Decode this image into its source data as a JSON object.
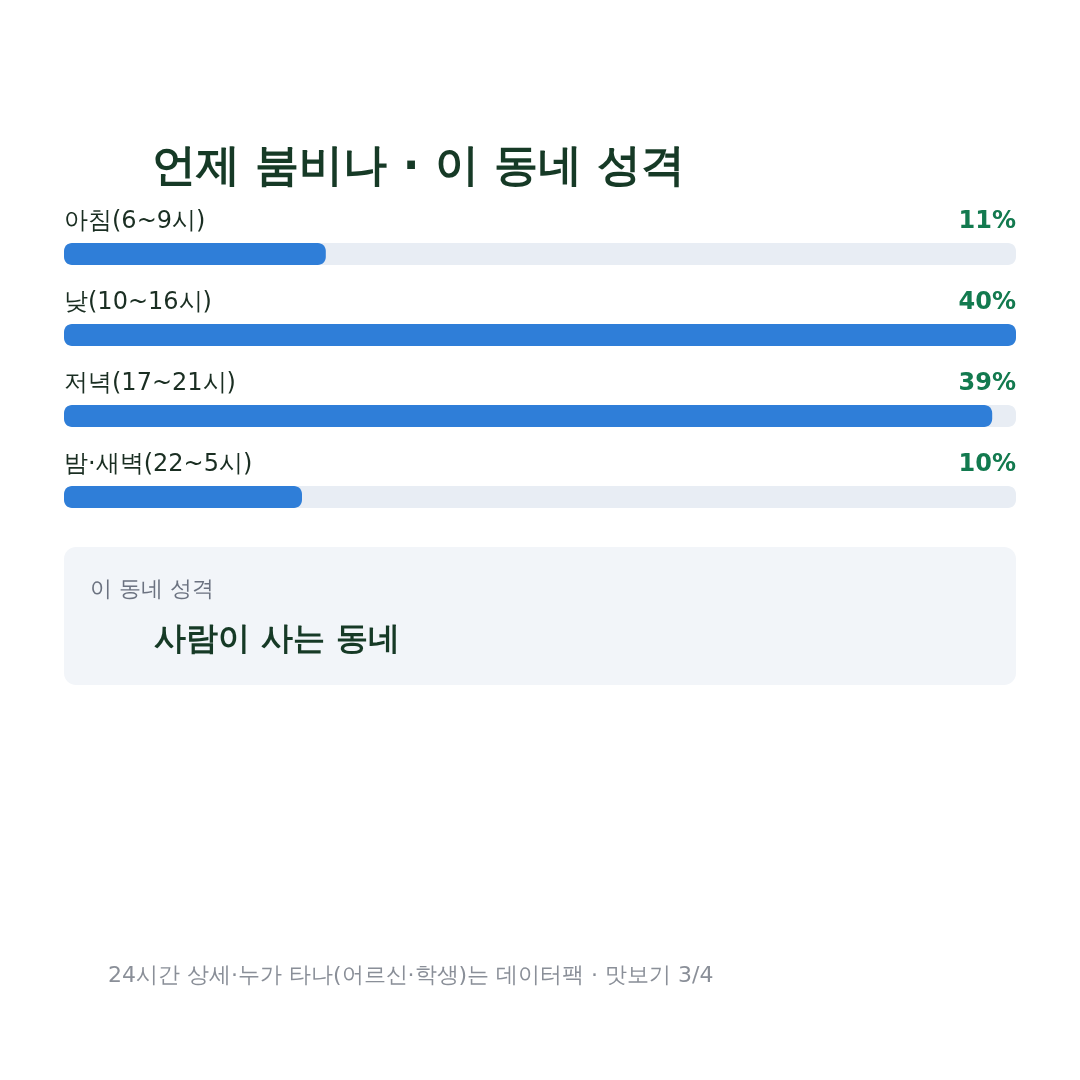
{
  "chart_data": {
    "type": "bar",
    "orientation": "horizontal",
    "title": "언제 붐비나 · 이 동네 성격",
    "categories": [
      "아침(6~9시)",
      "낮(10~16시)",
      "저녁(17~21시)",
      "밤·새벽(22~5시)"
    ],
    "values": [
      11,
      40,
      39,
      10
    ],
    "value_labels": [
      "11%",
      "40%",
      "39%",
      "10%"
    ],
    "color": "#2f7ed8",
    "annotations": [
      "이 동네 성격",
      "사람이 사는 동네",
      "24시간 상세·누가 타나(어르신·학생)는 데이터팩 · 맛보기 3/4"
    ]
  }
}
